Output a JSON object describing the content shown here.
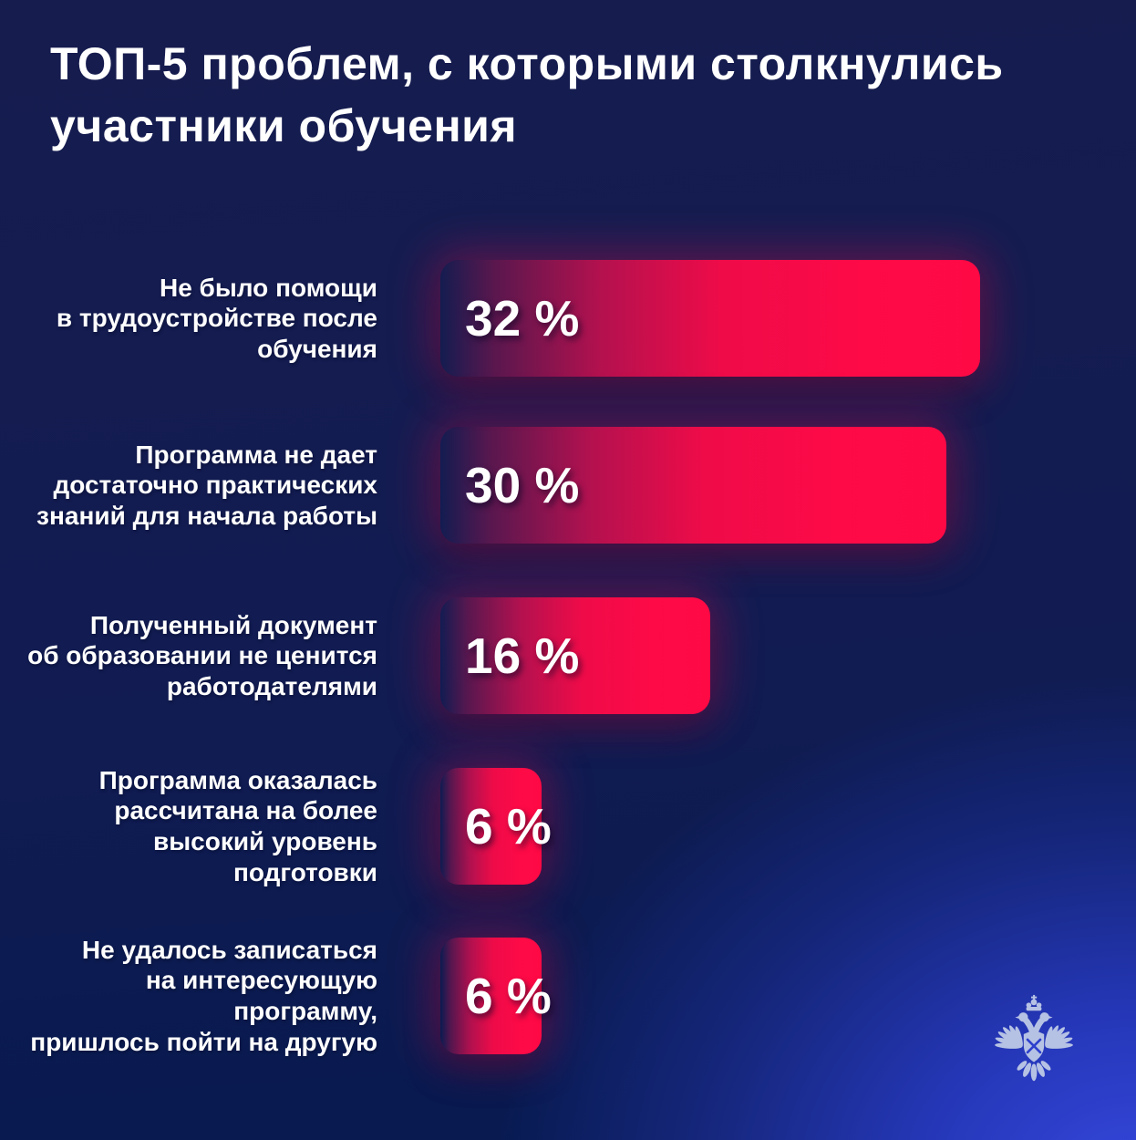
{
  "page": {
    "title": "ТОП-5 проблем, с которыми столкнулись\nучастники обучения"
  },
  "chart_data": {
    "type": "bar",
    "orientation": "horizontal",
    "title": "ТОП-5 проблем, с которыми столкнулись участники обучения",
    "value_unit": "%",
    "axis_range": [
      0,
      32
    ],
    "grid": false,
    "legend": false,
    "categories": [
      "Не было помощи в трудоустройстве после обучения",
      "Программа не дает достаточно практических знаний для начала работы",
      "Полученный документ об образовании не ценится работодателями",
      "Программа оказалась рассчитана на более высокий уровень подготовки",
      "Не удалось записаться на интересующую программу, пришлось пойти на другую"
    ],
    "values": [
      32,
      30,
      16,
      6,
      6
    ],
    "rows": [
      {
        "label": "Не было помощи\nв трудоустройстве после\nобучения",
        "value": 32,
        "value_label": "32 %"
      },
      {
        "label": "Программа не дает\nдостаточно практических\nзнаний  для начала работы",
        "value": 30,
        "value_label": "30 %"
      },
      {
        "label": "Полученный документ\nоб образовании не ценится\nработодателями",
        "value": 16,
        "value_label": "16 %"
      },
      {
        "label": "Программа оказалась\nрассчитана на более\nвысокий уровень\nподготовки",
        "value": 6,
        "value_label": "6 %"
      },
      {
        "label": "Не удалось записаться\nна интересующую программу,\nпришлось пойти на другую",
        "value": 6,
        "value_label": "6 %"
      }
    ],
    "colors": {
      "bar_bright": "#fc0a48",
      "bar_fade_mid": "#c11257",
      "background_dark": "#131a4a",
      "background_bright": "#2b3fd0",
      "text": "#ffffff",
      "emblem": "#b6c2e4"
    }
  },
  "footer": {
    "emblem_icon": "double-headed-eagle-emblem"
  }
}
